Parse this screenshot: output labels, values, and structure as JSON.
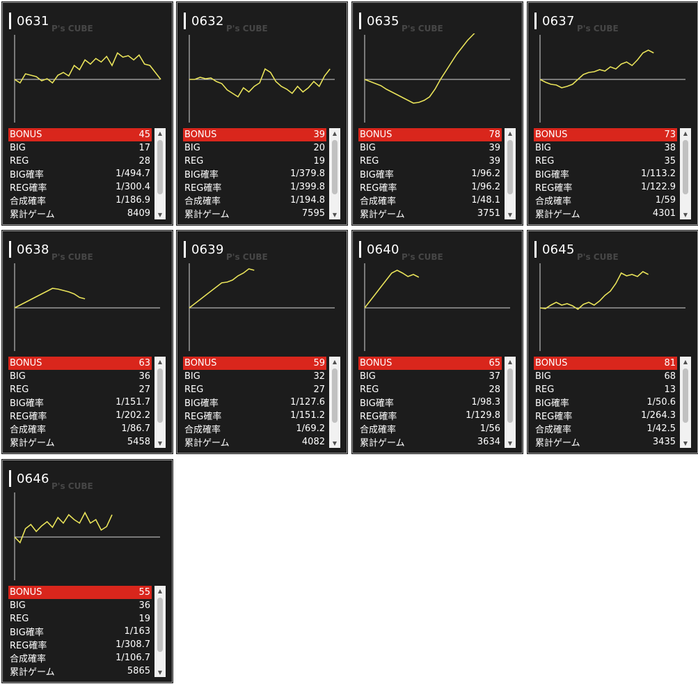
{
  "colors": {
    "card_bg": "#1c1c1c",
    "line": "#e9e35a",
    "bonus_bg": "#d9261c",
    "text": "#ffffff"
  },
  "labels": {
    "bonus": "BONUS",
    "big": "BIG",
    "reg": "REG",
    "big_rate": "BIG確率",
    "reg_rate": "REG確率",
    "total_rate": "合成確率",
    "games": "累計ゲーム"
  },
  "watermark": "P's CUBE",
  "machines": [
    {
      "id": "0631",
      "bonus": "45",
      "big": "17",
      "reg": "28",
      "big_rate": "1/494.7",
      "reg_rate": "1/300.4",
      "total_rate": "1/186.9",
      "games": "8409",
      "trend": [
        0,
        -5,
        8,
        6,
        4,
        -2,
        1,
        -5,
        6,
        10,
        5,
        20,
        14,
        28,
        22,
        30,
        25,
        33,
        20,
        38,
        32,
        34,
        28,
        35,
        22,
        20,
        10,
        0
      ]
    },
    {
      "id": "0632",
      "bonus": "39",
      "big": "20",
      "reg": "19",
      "big_rate": "1/379.8",
      "reg_rate": "1/399.8",
      "total_rate": "1/194.8",
      "games": "7595",
      "trend": [
        0,
        0,
        3,
        1,
        2,
        -3,
        -6,
        -15,
        -20,
        -25,
        -12,
        -18,
        -10,
        -5,
        15,
        10,
        -3,
        -10,
        -14,
        -20,
        -10,
        -18,
        -12,
        -3,
        -10,
        5,
        15
      ]
    },
    {
      "id": "0635",
      "bonus": "78",
      "big": "39",
      "reg": "39",
      "big_rate": "1/96.2",
      "reg_rate": "1/96.2",
      "total_rate": "1/48.1",
      "games": "3751",
      "trend": [
        0,
        -3,
        -6,
        -9,
        -14,
        -18,
        -22,
        -26,
        -30,
        -34,
        -33,
        -30,
        -25,
        -14,
        0,
        12,
        24,
        36,
        46,
        56,
        64,
        72,
        78
      ]
    },
    {
      "id": "0637",
      "bonus": "73",
      "big": "38",
      "reg": "35",
      "big_rate": "1/113.2",
      "reg_rate": "1/122.9",
      "total_rate": "1/59",
      "games": "4301",
      "trend": [
        0,
        -4,
        -7,
        -8,
        -12,
        -10,
        -7,
        0,
        7,
        10,
        11,
        14,
        12,
        18,
        15,
        22,
        25,
        20,
        28,
        38,
        42,
        38
      ]
    },
    {
      "id": "0638",
      "bonus": "63",
      "big": "36",
      "reg": "27",
      "big_rate": "1/151.7",
      "reg_rate": "1/202.2",
      "total_rate": "1/86.7",
      "games": "5458",
      "trend": [
        0,
        4,
        8,
        12,
        16,
        20,
        24,
        28,
        27,
        25,
        23,
        20,
        15,
        13
      ]
    },
    {
      "id": "0639",
      "bonus": "59",
      "big": "32",
      "reg": "27",
      "big_rate": "1/127.6",
      "reg_rate": "1/151.2",
      "total_rate": "1/69.2",
      "games": "4082",
      "trend": [
        0,
        6,
        12,
        18,
        24,
        30,
        36,
        37,
        40,
        46,
        50,
        56,
        54
      ]
    },
    {
      "id": "0640",
      "bonus": "65",
      "big": "37",
      "reg": "28",
      "big_rate": "1/98.3",
      "reg_rate": "1/129.8",
      "total_rate": "1/56",
      "games": "3634",
      "trend": [
        0,
        10,
        20,
        30,
        40,
        50,
        54,
        50,
        45,
        48,
        44
      ]
    },
    {
      "id": "0645",
      "bonus": "81",
      "big": "68",
      "reg": "13",
      "big_rate": "1/50.6",
      "reg_rate": "1/264.3",
      "total_rate": "1/42.5",
      "games": "3435",
      "trend": [
        0,
        -1,
        4,
        8,
        4,
        6,
        3,
        -2,
        5,
        8,
        4,
        10,
        18,
        24,
        35,
        50,
        46,
        48,
        45,
        52,
        48
      ]
    },
    {
      "id": "0646",
      "bonus": "55",
      "big": "36",
      "reg": "19",
      "big_rate": "1/163",
      "reg_rate": "1/308.7",
      "total_rate": "1/106.7",
      "games": "5865",
      "trend": [
        0,
        -8,
        12,
        18,
        8,
        16,
        22,
        14,
        28,
        20,
        32,
        25,
        20,
        35,
        20,
        25,
        10,
        15,
        32
      ]
    }
  ]
}
